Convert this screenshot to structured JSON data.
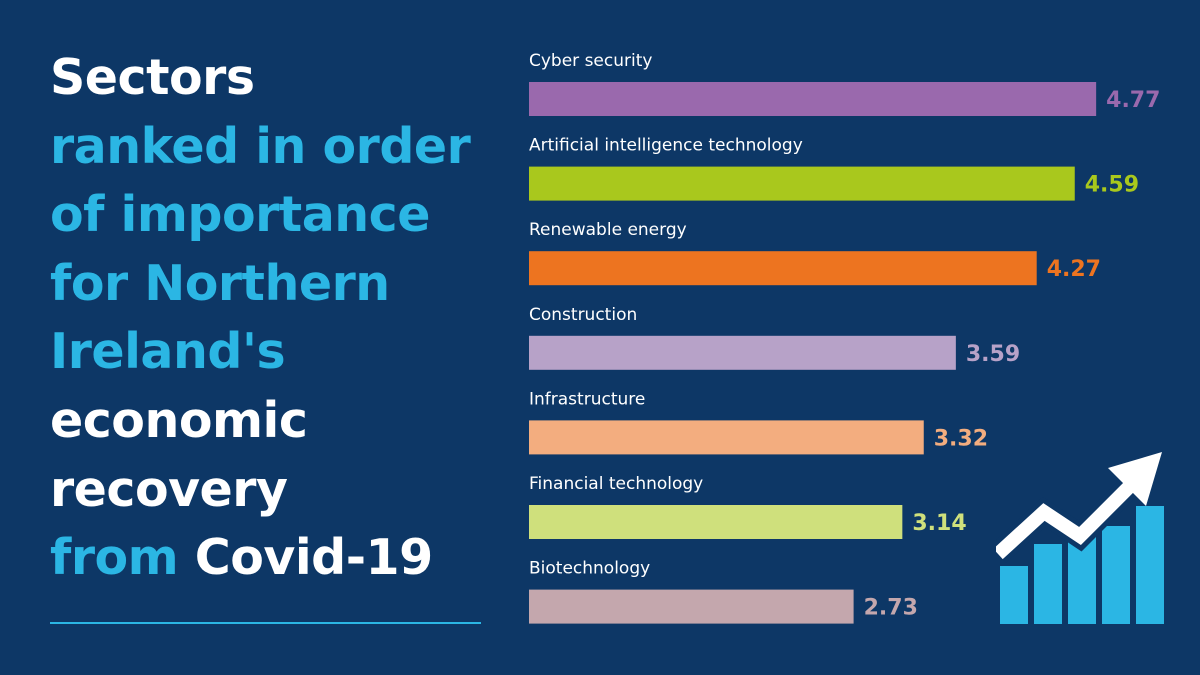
{
  "title": {
    "lines": [
      {
        "segments": [
          {
            "text": "Sectors",
            "color": "#ffffff"
          }
        ]
      },
      {
        "segments": [
          {
            "text": "ranked in order",
            "color": "#2bb6e4"
          }
        ]
      },
      {
        "segments": [
          {
            "text": "of importance",
            "color": "#2bb6e4"
          }
        ]
      },
      {
        "segments": [
          {
            "text": "for Northern",
            "color": "#2bb6e4"
          }
        ]
      },
      {
        "segments": [
          {
            "text": "Ireland's",
            "color": "#2bb6e4"
          }
        ]
      },
      {
        "segments": [
          {
            "text": "economic",
            "color": "#ffffff"
          }
        ]
      },
      {
        "segments": [
          {
            "text": "recovery",
            "color": "#ffffff"
          }
        ]
      },
      {
        "segments": [
          {
            "text": "from ",
            "color": "#2bb6e4"
          },
          {
            "text": "Covid-19",
            "color": "#ffffff"
          }
        ]
      }
    ]
  },
  "colors": {
    "background": "#0d3766",
    "accent": "#2bb6e4",
    "label": "#ffffff"
  },
  "icon": {
    "name": "growth-chart-arrow-icon"
  },
  "chart_data": {
    "type": "bar",
    "orientation": "horizontal",
    "categories": [
      "Cyber security",
      "Artificial intelligence technology",
      "Renewable energy",
      "Construction",
      "Infrastructure",
      "Financial technology",
      "Biotechnology"
    ],
    "values": [
      4.77,
      4.59,
      4.27,
      3.59,
      3.32,
      3.14,
      2.73
    ],
    "value_labels": [
      "4.77",
      "4.59",
      "4.27",
      "3.59",
      "3.32",
      "3.14",
      "2.73"
    ],
    "bar_colors": [
      "#9a69ad",
      "#a9c81d",
      "#ed7420",
      "#b7a2c8",
      "#f3ad7f",
      "#cfe07c",
      "#c4a7ad"
    ],
    "value_label_colors": [
      "#9a69ad",
      "#a9c81d",
      "#ed7420",
      "#b7a2c8",
      "#f3ad7f",
      "#cfe07c",
      "#c4a7ad"
    ],
    "xlim": [
      0,
      5
    ],
    "grid": false,
    "legend": "none",
    "value_labels_position": "end-of-bar"
  }
}
